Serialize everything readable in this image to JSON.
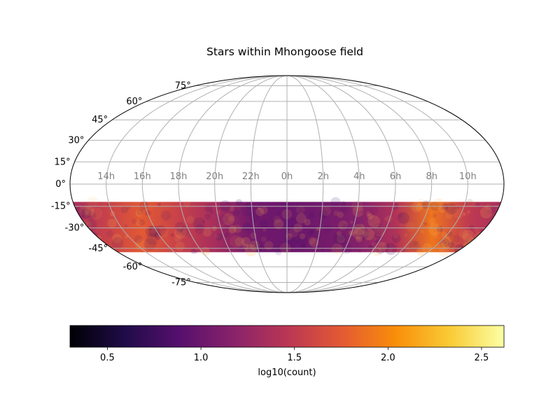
{
  "chart_data": {
    "type": "heatmap",
    "projection": "mollweide",
    "title": "Stars within Mhongoose field",
    "ra_tick_labels": [
      "14h",
      "16h",
      "18h",
      "20h",
      "22h",
      "0h",
      "2h",
      "4h",
      "6h",
      "8h",
      "10h"
    ],
    "ra_tick_hours": [
      14,
      16,
      18,
      20,
      22,
      0,
      2,
      4,
      6,
      8,
      10
    ],
    "dec_tick_labels": [
      "-75°",
      "-60°",
      "-45°",
      "-30°",
      "-15°",
      "0°",
      "15°",
      "30°",
      "45°",
      "60°",
      "75°"
    ],
    "dec_tick_degrees": [
      -75,
      -60,
      -45,
      -30,
      -15,
      0,
      15,
      30,
      45,
      60,
      75
    ],
    "grid": true,
    "data_band": {
      "dec_min": -48,
      "dec_max": -12,
      "ra_range_hours": "all (0h–24h)"
    },
    "colormap": "inferno",
    "colorbar": {
      "label": "log10(count)",
      "range": [
        0.3,
        2.62
      ],
      "tick_labels": [
        "0.5",
        "1.0",
        "1.5",
        "2.0",
        "2.5"
      ],
      "tick_values": [
        0.5,
        1.0,
        1.5,
        2.0,
        2.5
      ],
      "orientation": "horizontal",
      "placement": "bottom"
    },
    "intensity_profile": [
      {
        "ra_hours": 12,
        "log10_count": 1.35
      },
      {
        "ra_hours": 14,
        "log10_count": 1.55
      },
      {
        "ra_hours": 16,
        "log10_count": 1.75
      },
      {
        "ra_hours": 18,
        "log10_count": 1.55
      },
      {
        "ra_hours": 20,
        "log10_count": 1.35
      },
      {
        "ra_hours": 22,
        "log10_count": 1.05
      },
      {
        "ra_hours": 0,
        "log10_count": 1.0
      },
      {
        "ra_hours": 2,
        "log10_count": 1.05
      },
      {
        "ra_hours": 4,
        "log10_count": 1.15
      },
      {
        "ra_hours": 6,
        "log10_count": 1.4
      },
      {
        "ra_hours": 8,
        "log10_count": 1.9
      },
      {
        "ra_hours": 10,
        "log10_count": 1.5
      },
      {
        "ra_hours": 12,
        "log10_count": 1.35
      }
    ],
    "colors": {
      "grid": "#b0b0b0",
      "ra_tick_text": "#808080",
      "outline": "#000000",
      "inferno_stops": [
        "#000004",
        "#1f0c48",
        "#550f6d",
        "#88226a",
        "#ba3655",
        "#e35933",
        "#f98e09",
        "#f9cb35",
        "#fcffa4"
      ]
    }
  }
}
